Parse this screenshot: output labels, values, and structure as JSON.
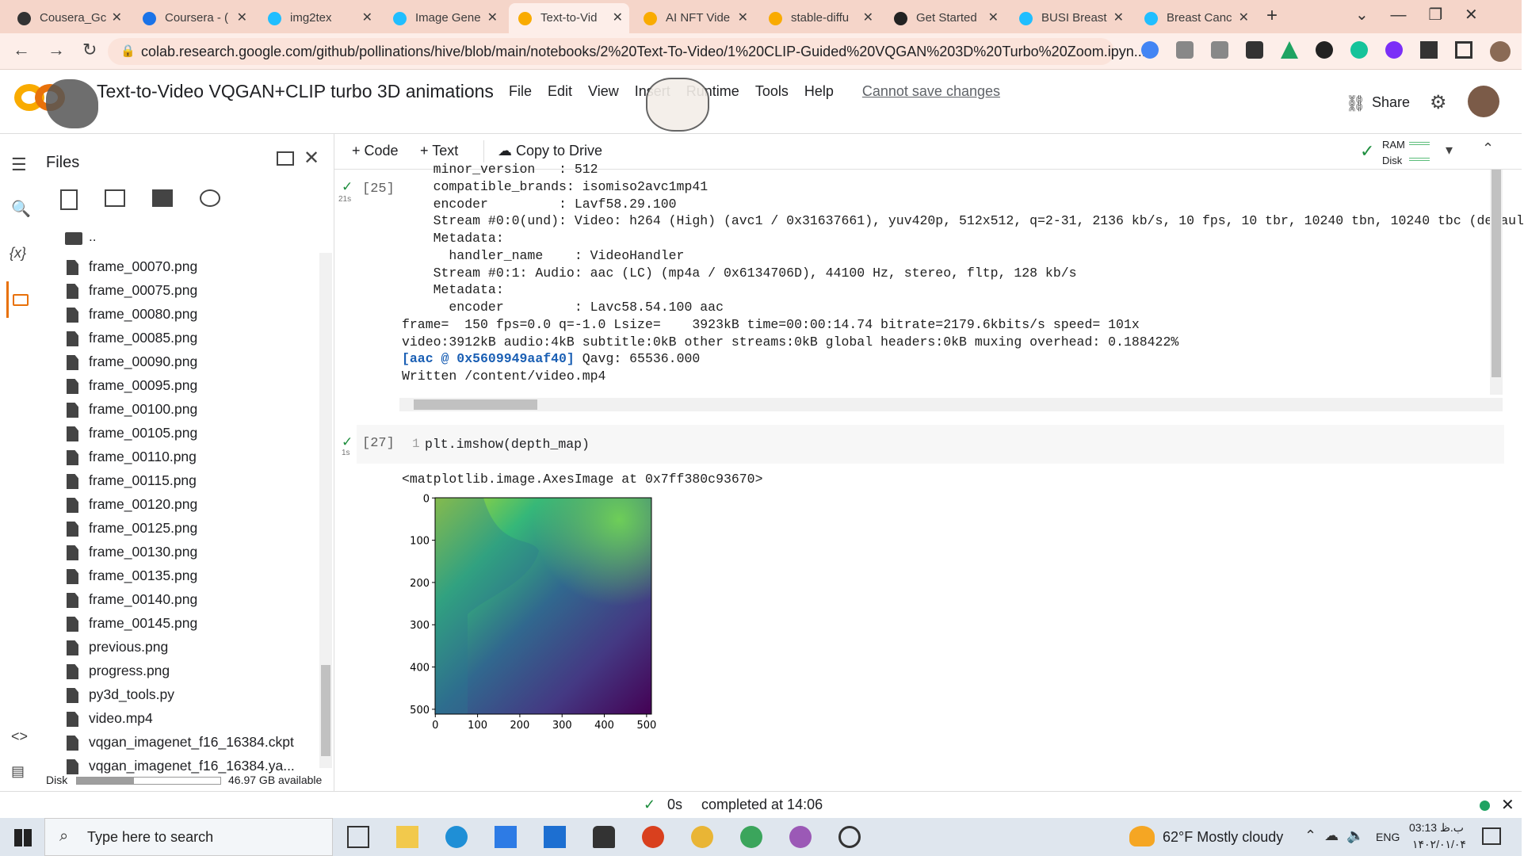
{
  "browser": {
    "tabs": [
      "Cousera_Gc",
      "Coursera - (",
      "img2tex",
      "Image Gene",
      "Text-to-Vid",
      "AI NFT Vide",
      "stable-diffu",
      "Get Started",
      "BUSI Breast",
      "Breast Canc"
    ],
    "active_tab": 4,
    "address": "colab.research.google.com/github/pollinations/hive/blob/main/notebooks/2%20Text-To-Video/1%20CLIP-Guided%20VQGAN%203D%20Turbo%20Zoom.ipyn..."
  },
  "header": {
    "title": "Text-to-Video VQGAN+CLIP turbo 3D animations",
    "menu": [
      "File",
      "Edit",
      "View",
      "Insert",
      "Runtime",
      "Tools",
      "Help"
    ],
    "save_status": "Cannot save changes",
    "share": "Share"
  },
  "toolbar": {
    "code": "Code",
    "text": "Text",
    "copy": "Copy to Drive",
    "ram": "RAM",
    "disk": "Disk"
  },
  "sidebar": {
    "title": "Files",
    "parent": "..",
    "files": [
      "frame_00070.png",
      "frame_00075.png",
      "frame_00080.png",
      "frame_00085.png",
      "frame_00090.png",
      "frame_00095.png",
      "frame_00100.png",
      "frame_00105.png",
      "frame_00110.png",
      "frame_00115.png",
      "frame_00120.png",
      "frame_00125.png",
      "frame_00130.png",
      "frame_00135.png",
      "frame_00140.png",
      "frame_00145.png",
      "previous.png",
      "progress.png",
      "py3d_tools.py",
      "video.mp4",
      "vqgan_imagenet_f16_16384.ckpt",
      "vqgan_imagenet_f16_16384.ya..."
    ],
    "disk_label": "Disk",
    "disk_available": "46.97 GB available"
  },
  "cells": [
    {
      "count": "[25]",
      "time": "21s",
      "output": [
        "    minor_version   : 512",
        "    compatible_brands: isomiso2avc1mp41",
        "    encoder         : Lavf58.29.100",
        "    Stream #0:0(und): Video: h264 (High) (avc1 / 0x31637661), yuv420p, 512x512, q=2-31, 2136 kb/s, 10 fps, 10 tbr, 10240 tbn, 10240 tbc (defaul",
        "    Metadata:",
        "      handler_name    : VideoHandler",
        "    Stream #0:1: Audio: aac (LC) (mp4a / 0x6134706D), 44100 Hz, stereo, fltp, 128 kb/s",
        "    Metadata:",
        "      encoder         : Lavc58.54.100 aac",
        "frame=  150 fps=0.0 q=-1.0 Lsize=    3923kB time=00:00:14.74 bitrate=2179.6kbits/s speed= 101x",
        "video:3912kB audio:4kB subtitle:0kB other streams:0kB global headers:0kB muxing overhead: 0.188422%"
      ],
      "log_prefix": "[aac @ 0x5609949aaf40]",
      "log_rest": " Qavg: 65536.000",
      "last_line": "Written /content/video.mp4"
    },
    {
      "count": "[27]",
      "time": "1s",
      "line_number": "1",
      "code": "plt.imshow(depth_map)",
      "output": "<matplotlib.image.AxesImage at 0x7ff380c93670>",
      "plot": {
        "xticks": [
          0,
          100,
          200,
          300,
          400,
          500
        ],
        "yticks": [
          0,
          100,
          200,
          300,
          400,
          500
        ]
      }
    }
  ],
  "status": {
    "duration": "0s",
    "completed": "completed at 14:06"
  },
  "taskbar": {
    "search": "Type here to search",
    "weather": "62°F Mostly cloudy",
    "language": "ENG",
    "time": "03:13 ب.ظ",
    "date": "۱۴۰۲/۰۱/۰۴"
  }
}
